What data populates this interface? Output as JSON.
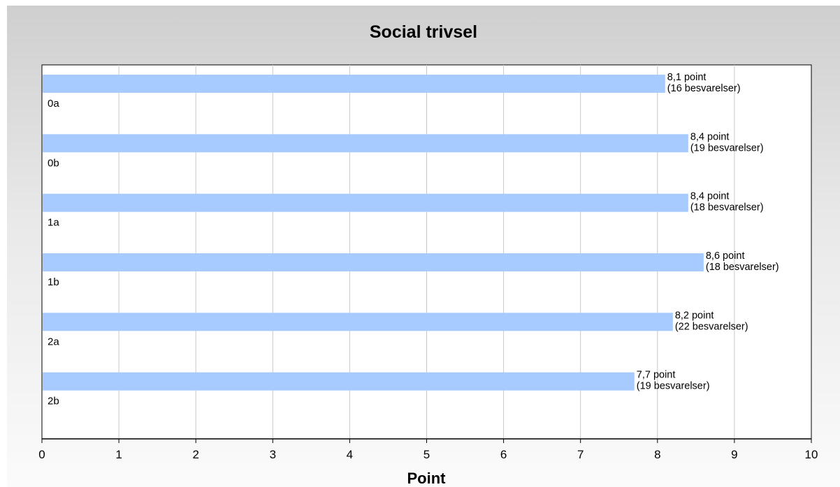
{
  "chart_data": {
    "type": "bar",
    "orientation": "horizontal",
    "title": "Social trivsel",
    "xlabel": "Point",
    "ylabel": "",
    "xlim": [
      0,
      10
    ],
    "xticks": [
      0,
      1,
      2,
      3,
      4,
      5,
      6,
      7,
      8,
      9,
      10
    ],
    "grid": true,
    "bar_color": "#a7cbff",
    "categories": [
      "0a",
      "0b",
      "1a",
      "1b",
      "2a",
      "2b"
    ],
    "values": [
      8.1,
      8.4,
      8.4,
      8.6,
      8.2,
      7.7
    ],
    "value_labels": [
      "8,1 point",
      "8,4 point",
      "8,4 point",
      "8,6 point",
      "8,2 point",
      "7,7 point"
    ],
    "count_labels": [
      "(16 besvarelser)",
      "(19 besvarelser)",
      "(18 besvarelser)",
      "(18 besvarelser)",
      "(22 besvarelser)",
      "(19 besvarelser)"
    ]
  }
}
